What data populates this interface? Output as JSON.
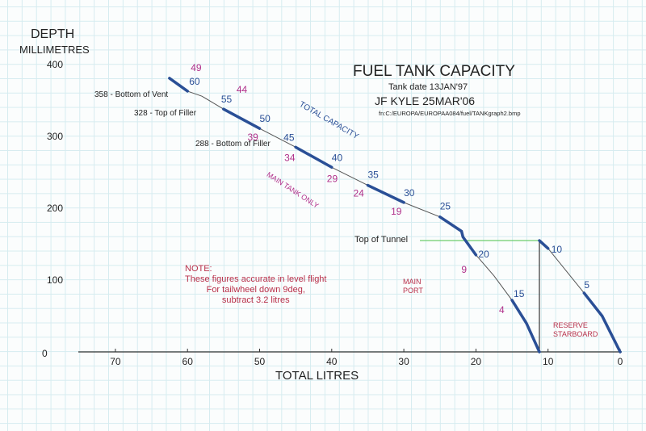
{
  "chart_data": {
    "type": "line",
    "title": "FUEL TANK CAPACITY",
    "subtitle_lines": [
      "Tank date   13JAN'97",
      "JF KYLE 25MAR'06",
      "fn:C:/EUROPA/EUROPAA084/fuel/TANKgraph2.bmp"
    ],
    "ylabel": "DEPTH",
    "ylabel_units": "MILLIMETRES",
    "xlabel": "TOTAL LITRES",
    "xlim": [
      75,
      0
    ],
    "ylim": [
      0,
      400
    ],
    "x_ticks": [
      70,
      60,
      50,
      40,
      30,
      20,
      10,
      0
    ],
    "y_ticks": [
      400,
      300,
      200,
      100,
      0
    ],
    "grid": true,
    "series": [
      {
        "name": "TOTAL CAPACITY",
        "color": "#2a4f96",
        "points": [
          [
            62.5,
            381
          ],
          [
            60,
            363
          ],
          [
            58,
            356
          ],
          [
            55,
            338
          ],
          [
            50,
            311
          ],
          [
            45,
            285
          ],
          [
            40,
            257
          ],
          [
            35,
            232
          ],
          [
            30,
            208
          ],
          [
            25,
            188
          ],
          [
            22,
            168
          ],
          [
            21.8,
            160
          ],
          [
            20,
            135
          ],
          [
            17.5,
            106
          ],
          [
            15,
            72
          ],
          [
            13,
            40
          ],
          [
            11.2,
            0
          ]
        ]
      },
      {
        "name": "RESERVE STARBOARD",
        "color": "#2a4f96",
        "points": [
          [
            11.2,
            155
          ],
          [
            10,
            144
          ],
          [
            5,
            82
          ],
          [
            2.5,
            50
          ],
          [
            1.5,
            30
          ],
          [
            0,
            0
          ]
        ]
      }
    ],
    "total_markers": [
      {
        "label": "60",
        "x": 60,
        "y": 363
      },
      {
        "label": "55",
        "x": 55,
        "y": 338
      },
      {
        "label": "50",
        "x": 50,
        "y": 311
      },
      {
        "label": "45",
        "x": 45,
        "y": 285
      },
      {
        "label": "40",
        "x": 40,
        "y": 257
      },
      {
        "label": "35",
        "x": 35,
        "y": 232
      },
      {
        "label": "30",
        "x": 30,
        "y": 208
      },
      {
        "label": "25",
        "x": 25,
        "y": 188
      },
      {
        "label": "20",
        "x": 20,
        "y": 135
      },
      {
        "label": "15",
        "x": 15,
        "y": 72
      },
      {
        "label": "10",
        "x": 10,
        "y": 144
      },
      {
        "label": "5",
        "x": 5,
        "y": 82
      }
    ],
    "main_tank_markers": [
      {
        "label": "49",
        "x": 60,
        "y": 363
      },
      {
        "label": "44",
        "x": 55,
        "y": 338
      },
      {
        "label": "39",
        "x": 50,
        "y": 311
      },
      {
        "label": "34",
        "x": 45,
        "y": 285
      },
      {
        "label": "29",
        "x": 40,
        "y": 257
      },
      {
        "label": "24",
        "x": 35,
        "y": 232
      },
      {
        "label": "19",
        "x": 30,
        "y": 208
      },
      {
        "label": "9",
        "x": 20,
        "y": 135
      },
      {
        "label": "4",
        "x": 15,
        "y": 72
      }
    ],
    "annotations": {
      "vent": "358 - Bottom of Vent",
      "filler_top": "328 - Top of Filler",
      "filler_bottom": "288 - Bottom of Filler",
      "tunnel": "Top of Tunnel",
      "total_capacity": "TOTAL CAPACITY",
      "main_tank_only": "MAIN TANK ONLY",
      "main_port": [
        "MAIN",
        "PORT"
      ],
      "reserve": [
        "RESERVE",
        "STARBOARD"
      ],
      "note": [
        "NOTE:",
        "These figures accurate in level flight",
        "For tailwheel down 9deg,",
        "subtract 3.2 litres"
      ]
    },
    "tunnel_depth": 155,
    "colors": {
      "curve": "#2a4f96",
      "main_label": "#b0308a",
      "note": "#b8304a",
      "tunnel": "#5cc85c"
    }
  }
}
